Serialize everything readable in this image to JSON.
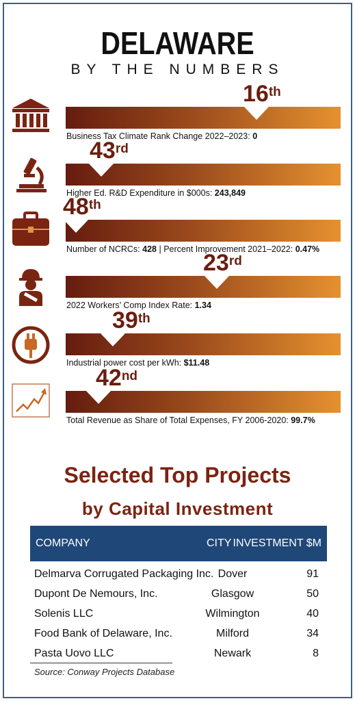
{
  "header": {
    "title": "DELAWARE",
    "subtitle": "BY THE NUMBERS"
  },
  "colors": {
    "bar_dark": "#651c0f",
    "bar_light": "#e59130",
    "rank_text": "#6a1e0f",
    "table_header": "#1f4878",
    "frame": "#3b5f86"
  },
  "metrics": [
    {
      "icon": "bank-icon",
      "rank": "16",
      "suffix": "th",
      "label": "Business Tax Climate Rank Change 2022–2023:",
      "value": "0"
    },
    {
      "icon": "microscope-icon",
      "rank": "43",
      "suffix": "rd",
      "label": "Higher Ed. R&D Expenditure in $000s:",
      "value": "243,849"
    },
    {
      "icon": "briefcase-icon",
      "rank": "48",
      "suffix": "th",
      "label": "Number of NCRCs:",
      "value": "428",
      "label2": " | Percent Improvement 2021–2022:",
      "value2": "0.47%"
    },
    {
      "icon": "injured-worker-icon",
      "rank": "23",
      "suffix": "rd",
      "label": "2022 Workers’ Comp Index Rate:",
      "value": "1.34"
    },
    {
      "icon": "power-plug-icon",
      "rank": "39",
      "suffix": "th",
      "label": "Industrial power cost per kWh:",
      "value": "$11.48"
    },
    {
      "icon": "rising-chart-icon",
      "rank": "42",
      "suffix": "nd",
      "label": "Total Revenue as Share of Total Expenses, FY 2006-2020:",
      "value": "99.7%"
    }
  ],
  "projects": {
    "heading1": "Selected Top Projects",
    "heading2": "by Capital Investment",
    "columns": {
      "company": "COMPANY",
      "city": "CITY",
      "investment": "INVESTMENT $M"
    },
    "rows": [
      {
        "company": "Delmarva Corrugated Packaging Inc.",
        "city": "Dover",
        "investment": "91"
      },
      {
        "company": "Dupont De Nemours, Inc.",
        "city": "Glasgow",
        "investment": "50"
      },
      {
        "company": "Solenis LLC",
        "city": "Wilmington",
        "investment": "40"
      },
      {
        "company": "Food Bank of Delaware, Inc.",
        "city": "Milford",
        "investment": "34"
      },
      {
        "company": "Pasta Uovo LLC",
        "city": "Newark",
        "investment": "8"
      }
    ],
    "source": "Source: Conway Projects Database"
  }
}
